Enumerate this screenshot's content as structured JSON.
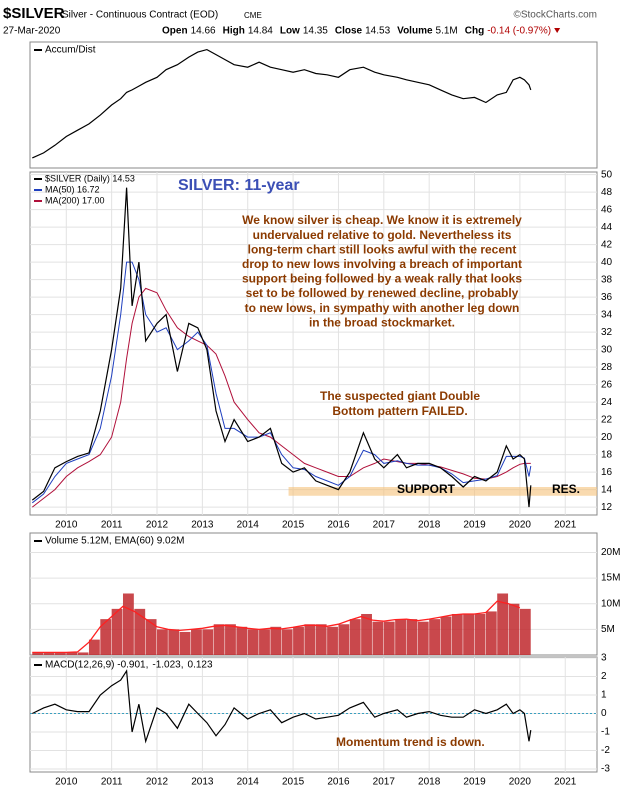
{
  "header": {
    "symbol": "$SILVER",
    "description": "Silver - Continuous Contract (EOD)",
    "exchange": "CME",
    "source": "©StockCharts.com",
    "date": "27-Mar-2020",
    "quote": [
      {
        "label": "Open",
        "value": "14.66"
      },
      {
        "label": "High",
        "value": "14.84"
      },
      {
        "label": "Low",
        "value": "14.35"
      },
      {
        "label": "Close",
        "value": "14.53"
      },
      {
        "label": "Volume",
        "value": "5.1M"
      },
      {
        "label": "Chg",
        "value": "-0.14 (-0.97%)"
      }
    ]
  },
  "chart_data": [
    {
      "type": "line",
      "legend": "Accum/Dist",
      "xlim": [
        2009.2,
        2021.7
      ],
      "ylim": [
        0,
        100
      ],
      "x": [
        2009.25,
        2009.5,
        2009.75,
        2010.0,
        2010.25,
        2010.5,
        2010.75,
        2011.0,
        2011.2,
        2011.33,
        2011.45,
        2011.6,
        2011.75,
        2012.0,
        2012.2,
        2012.45,
        2012.7,
        2012.9,
        2013.1,
        2013.3,
        2013.5,
        2013.7,
        2014.0,
        2014.25,
        2014.5,
        2014.75,
        2015.0,
        2015.25,
        2015.5,
        2015.75,
        2016.0,
        2016.25,
        2016.55,
        2016.8,
        2017.0,
        2017.3,
        2017.5,
        2017.75,
        2018.0,
        2018.25,
        2018.5,
        2018.75,
        2019.0,
        2019.25,
        2019.5,
        2019.7,
        2019.85,
        2020.0,
        2020.1,
        2020.2,
        2020.24
      ],
      "series": [
        {
          "color": "#000000",
          "values": [
            8,
            12,
            18,
            25,
            30,
            35,
            42,
            50,
            55,
            60,
            62,
            65,
            68,
            72,
            78,
            82,
            88,
            92,
            94,
            90,
            86,
            82,
            80,
            84,
            80,
            78,
            76,
            78,
            75,
            74,
            72,
            78,
            80,
            76,
            74,
            72,
            70,
            68,
            66,
            62,
            58,
            55,
            56,
            52,
            58,
            60,
            70,
            72,
            70,
            66,
            62
          ]
        }
      ]
    },
    {
      "type": "line",
      "xlim": [
        2009.2,
        2021.7
      ],
      "ylim": [
        11.1,
        50.3
      ],
      "yticks": [
        12,
        14,
        16,
        18,
        20,
        22,
        24,
        26,
        28,
        30,
        32,
        34,
        36,
        38,
        40,
        42,
        44,
        46,
        48,
        50
      ],
      "xticks": [
        2010,
        2011,
        2012,
        2013,
        2014,
        2015,
        2016,
        2017,
        2018,
        2019,
        2020,
        2021
      ],
      "grid": true,
      "x": [
        2009.25,
        2009.5,
        2009.75,
        2010.0,
        2010.25,
        2010.5,
        2010.75,
        2011.0,
        2011.2,
        2011.33,
        2011.45,
        2011.6,
        2011.75,
        2012.0,
        2012.2,
        2012.45,
        2012.7,
        2012.9,
        2013.1,
        2013.3,
        2013.5,
        2013.7,
        2014.0,
        2014.25,
        2014.5,
        2014.75,
        2015.0,
        2015.25,
        2015.5,
        2015.75,
        2016.0,
        2016.25,
        2016.55,
        2016.8,
        2017.0,
        2017.3,
        2017.5,
        2017.75,
        2018.0,
        2018.25,
        2018.5,
        2018.75,
        2019.0,
        2019.25,
        2019.5,
        2019.7,
        2019.85,
        2020.0,
        2020.1,
        2020.2,
        2020.24
      ],
      "series": [
        {
          "name": "$SILVER (Daily) 14.53",
          "color": "#000000",
          "values": [
            12.8,
            13.8,
            16.5,
            17.2,
            17.8,
            18.2,
            23,
            30,
            37,
            48.5,
            35,
            40,
            31,
            33,
            34,
            27.5,
            33,
            32.5,
            30,
            23,
            19.5,
            22,
            19.5,
            20,
            21,
            17,
            16,
            16.5,
            15,
            14.5,
            14,
            16,
            20.5,
            17.5,
            16.5,
            18,
            16.5,
            17,
            17,
            16.5,
            15.5,
            14.3,
            15.5,
            15,
            16,
            19,
            17.5,
            18,
            17.5,
            12,
            14.5
          ]
        },
        {
          "name": "MA(50) 16.72",
          "color": "#1f3fbf",
          "values": [
            12.5,
            13.5,
            15.5,
            17,
            17.5,
            18,
            21,
            27,
            34,
            40,
            40,
            38,
            34,
            32,
            32.5,
            30,
            31,
            32,
            30.5,
            25,
            21,
            21,
            20,
            20,
            20.5,
            18,
            16.5,
            16.3,
            15.5,
            15,
            14.5,
            15.5,
            18.5,
            18,
            17,
            17.3,
            17,
            16.8,
            16.8,
            16.5,
            15.8,
            14.8,
            15,
            15.2,
            15.6,
            17.8,
            17.8,
            17.8,
            17.6,
            15.5,
            16.7
          ]
        },
        {
          "name": "MA(200) 17.00",
          "color": "#b0103a",
          "values": [
            12,
            13,
            14,
            15.5,
            16.5,
            17.2,
            18,
            20,
            24,
            29,
            33,
            36,
            37,
            36.5,
            34.5,
            32.5,
            31.5,
            31,
            30.5,
            29.5,
            27,
            24,
            22,
            20.5,
            20,
            19,
            18,
            17,
            16.5,
            16,
            15.5,
            15.5,
            16.5,
            17,
            17.5,
            17.2,
            17,
            17,
            16.8,
            16.6,
            16.2,
            15.8,
            15.3,
            15.2,
            15.5,
            16,
            16.5,
            16.9,
            17,
            17,
            17
          ]
        }
      ],
      "support_band": {
        "x_start": 2014.9,
        "y_range": [
          13.3,
          14.3
        ]
      },
      "title": "SILVER: 11-year",
      "commentary": [
        "We know silver is cheap. We know it is extremely",
        "undervalued relative to gold. Nevertheless its",
        "long-term chart still looks awful with the recent",
        "drop to new lows involving a breach of important",
        "support being followed by a weak rally that looks",
        "set to be followed by renewed decline, probably",
        "to new lows, in sympathy with another leg down",
        "in the broad stockmarket."
      ],
      "pattern_note": [
        "The suspected giant Double",
        "Bottom  pattern  FAILED."
      ],
      "support_label": "SUPPORT",
      "resistance_label": "RES."
    },
    {
      "type": "bar",
      "legend": "Volume 5.12M, EMA(60) 9.02M",
      "xlim": [
        2009.2,
        2021.7
      ],
      "ylim": [
        0,
        23.8
      ],
      "color": "#c0282d",
      "grid": true,
      "yticks": [
        {
          "value": 5,
          "label": "5M"
        },
        {
          "value": 10,
          "label": "10M"
        },
        {
          "value": 15,
          "label": "15M"
        },
        {
          "value": 20,
          "label": "20M"
        }
      ],
      "x": [
        2009.25,
        2009.5,
        2009.75,
        2010.0,
        2010.25,
        2010.5,
        2010.75,
        2011.0,
        2011.25,
        2011.5,
        2011.75,
        2012.0,
        2012.25,
        2012.5,
        2012.75,
        2013.0,
        2013.25,
        2013.5,
        2013.75,
        2014.0,
        2014.25,
        2014.5,
        2014.75,
        2015.0,
        2015.25,
        2015.5,
        2015.75,
        2016.0,
        2016.25,
        2016.5,
        2016.75,
        2017.0,
        2017.25,
        2017.5,
        2017.75,
        2018.0,
        2018.25,
        2018.5,
        2018.75,
        2019.0,
        2019.25,
        2019.5,
        2019.75,
        2020.0
      ],
      "values": [
        0.5,
        0.5,
        0.5,
        0.5,
        0.5,
        3,
        7,
        9,
        12,
        9,
        7,
        5,
        5,
        4.5,
        5,
        5,
        6,
        6,
        5.5,
        5,
        5,
        5.5,
        5,
        5.5,
        6,
        6,
        5.5,
        6,
        7,
        8,
        6.5,
        6.5,
        7,
        7,
        6.5,
        7,
        7.5,
        8,
        8,
        8,
        8.5,
        12,
        10,
        9
      ],
      "ema": {
        "color": "#ff2020",
        "values": [
          0.5,
          0.5,
          0.5,
          0.5,
          0.6,
          2.5,
          5.5,
          7.5,
          9.5,
          8.5,
          7,
          5.5,
          5,
          4.8,
          5,
          5.2,
          5.6,
          5.8,
          5.5,
          5.2,
          5,
          5.2,
          5.1,
          5.4,
          5.8,
          5.8,
          5.6,
          6,
          6.8,
          7.5,
          6.8,
          6.6,
          6.9,
          7,
          6.7,
          7,
          7.4,
          7.8,
          8,
          8,
          8.3,
          10.5,
          10,
          9.2
        ]
      }
    },
    {
      "type": "line",
      "xlim": [
        2009.2,
        2021.7
      ],
      "ylim": [
        -3.16,
        3.05
      ],
      "grid": true,
      "yticks": [
        -3,
        -2,
        -1,
        0,
        1,
        2,
        3
      ],
      "xticks": [
        2010,
        2011,
        2012,
        2013,
        2014,
        2015,
        2016,
        2017,
        2018,
        2019,
        2020,
        2021
      ],
      "legend": [
        {
          "text": "MACD(12,26,9) -0.901,",
          "color": "#000000"
        },
        {
          "text": "-1.023,",
          "color": "#cc0000"
        },
        {
          "text": "0.123",
          "color": "#1f8fb0"
        }
      ],
      "x": [
        2009.25,
        2009.5,
        2009.75,
        2010.0,
        2010.25,
        2010.5,
        2010.75,
        2011.0,
        2011.2,
        2011.33,
        2011.45,
        2011.6,
        2011.75,
        2012.0,
        2012.2,
        2012.45,
        2012.7,
        2012.9,
        2013.1,
        2013.3,
        2013.5,
        2013.7,
        2014.0,
        2014.25,
        2014.5,
        2014.75,
        2015.0,
        2015.25,
        2015.5,
        2015.75,
        2016.0,
        2016.25,
        2016.55,
        2016.8,
        2017.0,
        2017.3,
        2017.5,
        2017.75,
        2018.0,
        2018.25,
        2018.5,
        2018.75,
        2019.0,
        2019.25,
        2019.5,
        2019.7,
        2019.85,
        2020.0,
        2020.1,
        2020.2,
        2020.24
      ],
      "series": [
        {
          "color": "#000000",
          "values": [
            0,
            0.3,
            0.5,
            0.2,
            0.1,
            0.1,
            1,
            1.5,
            1.8,
            2.3,
            -1,
            0.5,
            -1.5,
            0.3,
            0,
            -0.8,
            0.5,
            0,
            -0.5,
            -1.2,
            -0.6,
            0.3,
            -0.3,
            0,
            0.2,
            -0.5,
            -0.2,
            0,
            -0.3,
            -0.2,
            -0.1,
            0.3,
            0.6,
            -0.2,
            0,
            0.2,
            -0.2,
            0,
            0.1,
            -0.1,
            -0.2,
            -0.2,
            0.2,
            0,
            0.2,
            0.5,
            0,
            0.2,
            0,
            -1.5,
            -0.9
          ]
        }
      ],
      "annotation": "Momentum trend is down."
    }
  ]
}
